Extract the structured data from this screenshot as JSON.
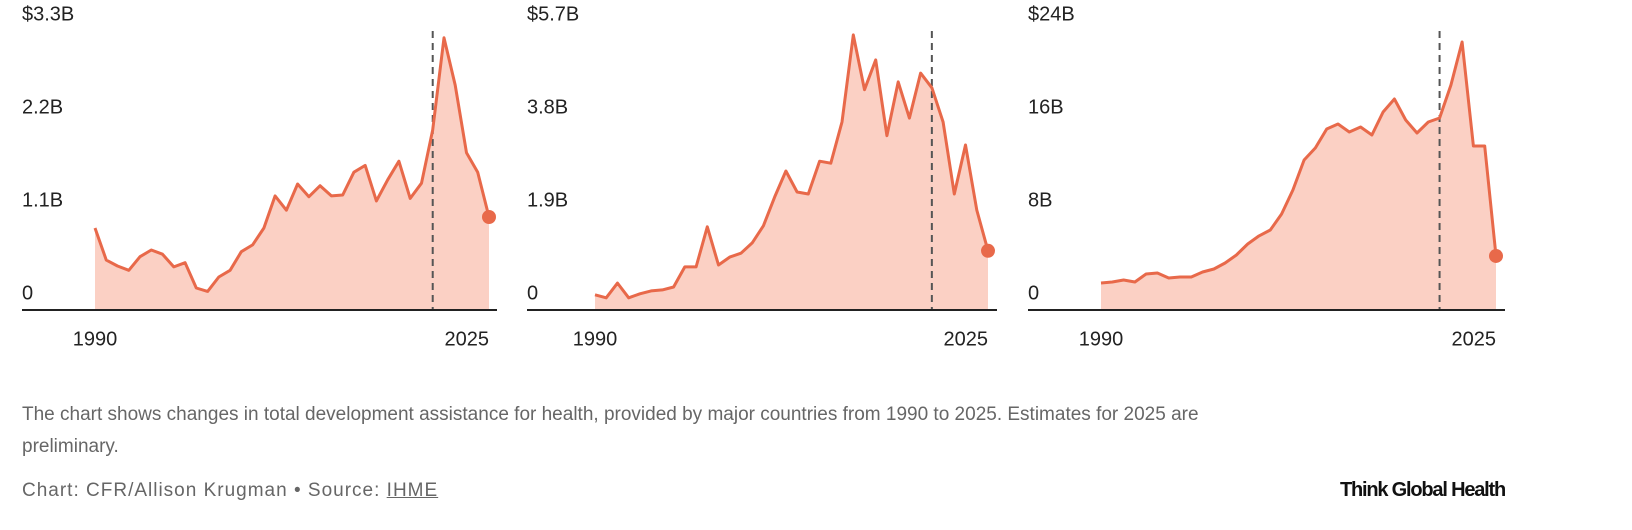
{
  "chart_data": [
    {
      "type": "area",
      "color": "#e8694a",
      "fill": "#fbd0c4",
      "x": [
        1990,
        1991,
        1992,
        1993,
        1994,
        1995,
        1996,
        1997,
        1998,
        1999,
        2000,
        2001,
        2002,
        2003,
        2004,
        2005,
        2006,
        2007,
        2008,
        2009,
        2010,
        2011,
        2012,
        2013,
        2014,
        2015,
        2016,
        2017,
        2018,
        2019,
        2020,
        2021,
        2022,
        2023,
        2024,
        2025
      ],
      "values": [
        0.97,
        0.59,
        0.52,
        0.47,
        0.63,
        0.71,
        0.66,
        0.51,
        0.56,
        0.26,
        0.22,
        0.39,
        0.47,
        0.69,
        0.77,
        0.97,
        1.35,
        1.18,
        1.49,
        1.34,
        1.47,
        1.35,
        1.36,
        1.63,
        1.71,
        1.29,
        1.54,
        1.76,
        1.32,
        1.5,
        2.13,
        3.22,
        2.66,
        1.86,
        1.63,
        1.1
      ],
      "xlim": [
        1990,
        2025
      ],
      "xticks": [
        1990,
        2025
      ],
      "reference_x": 2020,
      "ylim": [
        0,
        3.3
      ],
      "yticks": [
        0,
        {
          "value": 1.1,
          "label": "1.1B"
        },
        {
          "value": 2.2,
          "label": "2.2B"
        },
        {
          "value": 3.3,
          "label": "$3.3B"
        }
      ]
    },
    {
      "type": "area",
      "color": "#e8694a",
      "fill": "#fbd0c4",
      "x": [
        1990,
        1991,
        1992,
        1993,
        1994,
        1995,
        1996,
        1997,
        1998,
        1999,
        2000,
        2001,
        2002,
        2003,
        2004,
        2005,
        2006,
        2007,
        2008,
        2009,
        2010,
        2011,
        2012,
        2013,
        2014,
        2015,
        2016,
        2017,
        2018,
        2019,
        2020,
        2021,
        2022,
        2023,
        2024,
        2025
      ],
      "values": [
        0.31,
        0.25,
        0.55,
        0.25,
        0.33,
        0.39,
        0.41,
        0.47,
        0.88,
        0.88,
        1.7,
        0.92,
        1.08,
        1.16,
        1.37,
        1.72,
        2.31,
        2.84,
        2.41,
        2.37,
        3.04,
        3.0,
        3.84,
        5.62,
        4.5,
        5.11,
        3.56,
        4.66,
        3.92,
        4.84,
        4.54,
        3.84,
        2.37,
        3.37,
        2.04,
        1.21
      ],
      "xlim": [
        1990,
        2025
      ],
      "xticks": [
        1990,
        2025
      ],
      "reference_x": 2020,
      "ylim": [
        0,
        5.7
      ],
      "yticks": [
        0,
        {
          "value": 1.9,
          "label": "1.9B"
        },
        {
          "value": 3.8,
          "label": "3.8B"
        },
        {
          "value": 5.7,
          "label": "$5.7B"
        }
      ]
    },
    {
      "type": "area",
      "color": "#e8694a",
      "fill": "#fbd0c4",
      "x": [
        1990,
        1991,
        1992,
        1993,
        1994,
        1995,
        1996,
        1997,
        1998,
        1999,
        2000,
        2001,
        2002,
        2003,
        2004,
        2005,
        2006,
        2007,
        2008,
        2009,
        2010,
        2011,
        2012,
        2013,
        2014,
        2015,
        2016,
        2017,
        2018,
        2019,
        2020,
        2021,
        2022,
        2023,
        2024,
        2025
      ],
      "values": [
        2.32,
        2.41,
        2.58,
        2.41,
        3.1,
        3.18,
        2.75,
        2.84,
        2.84,
        3.27,
        3.53,
        4.04,
        4.73,
        5.68,
        6.37,
        6.88,
        8.26,
        10.32,
        12.9,
        13.94,
        15.57,
        16.0,
        15.31,
        15.74,
        15.05,
        17.03,
        18.15,
        16.34,
        15.23,
        16.17,
        16.52,
        19.35,
        23.05,
        14.11,
        14.11,
        4.65
      ],
      "xlim": [
        1990,
        2025
      ],
      "xticks": [
        1990,
        2025
      ],
      "reference_x": 2020,
      "ylim": [
        0,
        24
      ],
      "yticks": [
        0,
        {
          "value": 8,
          "label": "8B"
        },
        {
          "value": 16,
          "label": "16B"
        },
        {
          "value": 24,
          "label": "$24B"
        }
      ]
    }
  ],
  "caption": "The chart shows changes in total development assistance for health, provided by major countries from 1990 to 2025. Estimates for 2025 are preliminary.",
  "credit": "Chart: CFR/Allison Krugman • Source:",
  "source_link": "IHME",
  "brand": "Think Global Health"
}
